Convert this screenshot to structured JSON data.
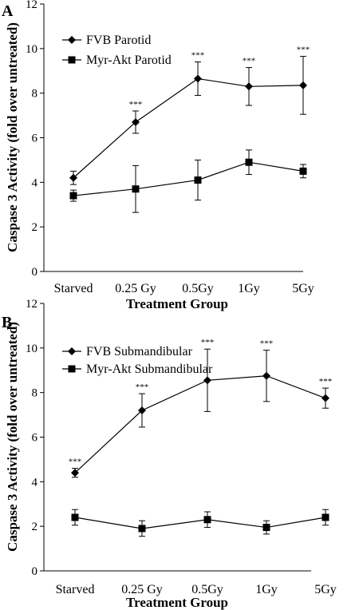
{
  "chart_data": [
    {
      "panel": "A",
      "type": "line",
      "xlabel": "Treatment Group",
      "ylabel": "Caspase 3 Activity (fold over untreated)",
      "ylim": [
        0,
        12
      ],
      "yticks": [
        0,
        2,
        4,
        6,
        8,
        10,
        12
      ],
      "categories": [
        "Starved",
        "0.25 Gy",
        "0.5Gy",
        "1Gy",
        "5Gy"
      ],
      "legend_position": "top-left",
      "grid": false,
      "series": [
        {
          "name": "FVB Parotid",
          "marker": "diamond",
          "values": [
            4.2,
            6.7,
            8.65,
            8.3,
            8.35
          ],
          "errors": [
            0.3,
            0.5,
            0.75,
            0.85,
            1.3
          ],
          "annotations": [
            "",
            "***",
            "***",
            "***",
            "***"
          ]
        },
        {
          "name": "Myr-Akt Parotid",
          "marker": "square",
          "values": [
            3.4,
            3.7,
            4.1,
            4.9,
            4.5
          ],
          "errors": [
            0.25,
            1.05,
            0.9,
            0.55,
            0.3
          ],
          "annotations": [
            "",
            "",
            "",
            "",
            ""
          ]
        }
      ]
    },
    {
      "panel": "B",
      "type": "line",
      "xlabel": "Treatment Group",
      "ylabel": "Caspase 3 Activity (fold over untreated)",
      "ylim": [
        0,
        12
      ],
      "yticks": [
        0,
        2,
        4,
        6,
        8,
        10,
        12
      ],
      "categories": [
        "Starved",
        "0.25 Gy",
        "0.5Gy",
        "1Gy",
        "5Gy"
      ],
      "legend_position": "top-left",
      "grid": false,
      "series": [
        {
          "name": "FVB Submandibular",
          "marker": "diamond",
          "values": [
            4.4,
            7.2,
            8.55,
            8.75,
            7.75
          ],
          "errors": [
            0.2,
            0.75,
            1.4,
            1.15,
            0.45
          ],
          "annotations": [
            "***",
            "***",
            "***",
            "***",
            "***"
          ]
        },
        {
          "name": "Myr-Akt Submandibular",
          "marker": "square",
          "values": [
            2.4,
            1.9,
            2.3,
            1.95,
            2.4
          ],
          "errors": [
            0.35,
            0.35,
            0.35,
            0.3,
            0.35
          ],
          "annotations": [
            "",
            "",
            "",
            "",
            ""
          ]
        }
      ]
    }
  ]
}
